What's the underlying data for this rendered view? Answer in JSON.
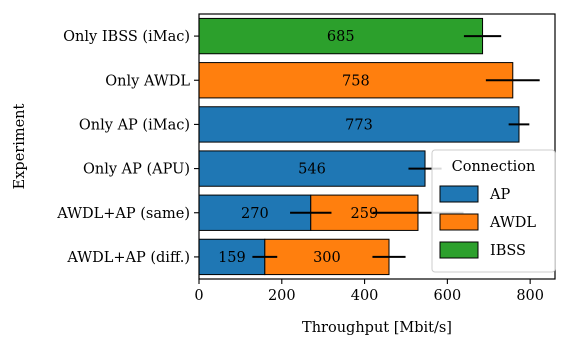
{
  "chart_data": {
    "type": "bar",
    "orientation": "horizontal",
    "stacked": true,
    "xlabel": "Throughput [Mbit/s]",
    "ylabel": "Experiment",
    "xlim": [
      0,
      860
    ],
    "xticks": [
      0,
      200,
      400,
      600,
      800
    ],
    "grid": false,
    "categories": [
      "Only IBSS (iMac)",
      "Only AWDL",
      "Only AP (iMac)",
      "Only AP (APU)",
      "AWDL+AP (same)",
      "AWDL+AP (diff.)"
    ],
    "series": [
      {
        "name": "AP",
        "color": "#1f77b4",
        "values": [
          null,
          null,
          773,
          546,
          270,
          159
        ],
        "errors": [
          null,
          null,
          25,
          40,
          50,
          30
        ],
        "labels": [
          "",
          "",
          "773",
          "546",
          "270",
          "159"
        ]
      },
      {
        "name": "AWDL",
        "color": "#ff7f0e",
        "values": [
          null,
          758,
          null,
          null,
          259,
          300
        ],
        "errors": [
          null,
          65,
          null,
          null,
          110,
          40
        ],
        "labels": [
          "",
          "758",
          "",
          "",
          "259",
          "300"
        ]
      },
      {
        "name": "IBSS",
        "color": "#2ca02c",
        "values": [
          685,
          null,
          null,
          null,
          null,
          null
        ],
        "errors": [
          45,
          null,
          null,
          null,
          null,
          null
        ],
        "labels": [
          "685",
          "",
          "",
          "",
          "",
          ""
        ]
      }
    ],
    "legend": {
      "title": "Connection",
      "placement": "lower-right",
      "entries": [
        "AP",
        "AWDL",
        "IBSS"
      ]
    }
  }
}
